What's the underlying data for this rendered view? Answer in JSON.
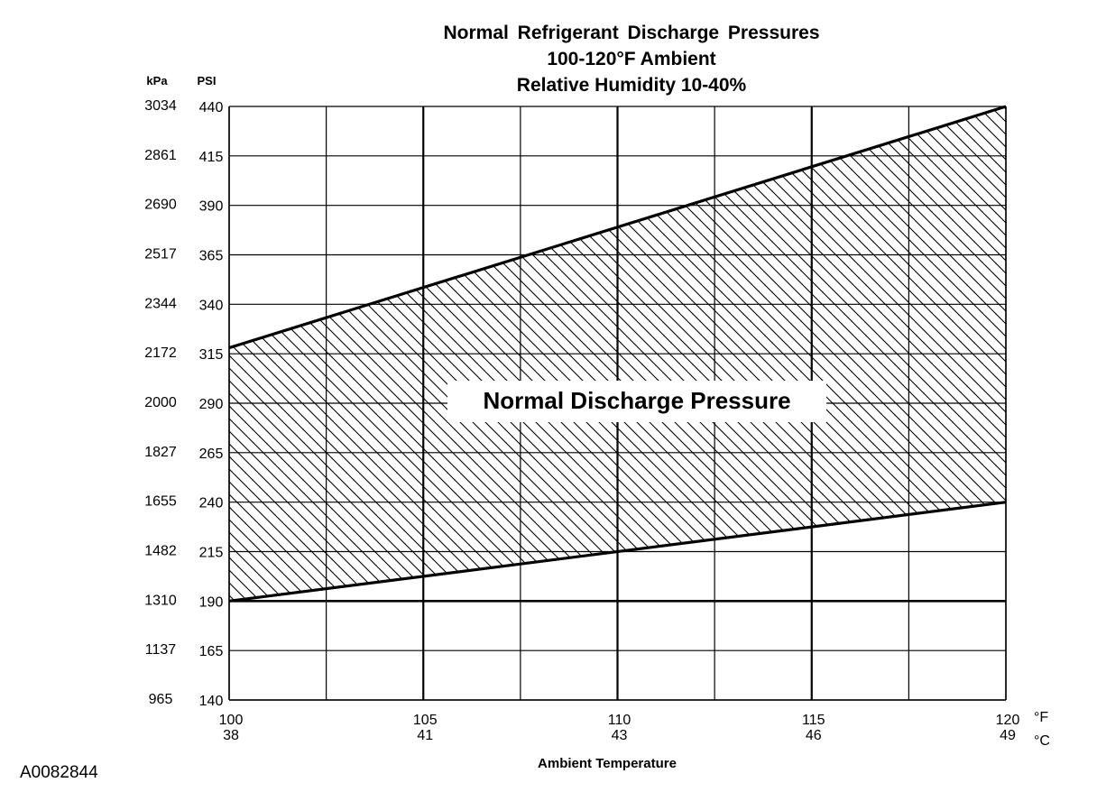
{
  "chart_data": {
    "type": "area",
    "title": "Normal  Refrigerant  Discharge  Pressures",
    "subtitle": [
      "100-120°F Ambient",
      "Relative Humidity 10-40%"
    ],
    "xlabel": "Ambient Temperature",
    "x_unit_primary": "°F",
    "x_unit_secondary": "°C",
    "y_unit_primary": "PSI",
    "y_unit_secondary": "kPa",
    "xlim": [
      100,
      120
    ],
    "ylim": [
      140,
      440
    ],
    "x_ticks_f": [
      "100",
      "105",
      "110",
      "115",
      "120"
    ],
    "x_ticks_c": [
      "38",
      "41",
      "43",
      "46",
      "49"
    ],
    "y_ticks_psi": [
      "140",
      "165",
      "190",
      "215",
      "240",
      "265",
      "290",
      "315",
      "340",
      "365",
      "390",
      "415",
      "440"
    ],
    "y_ticks_kpa": [
      "965",
      "1137",
      "1310",
      "1482",
      "1655",
      "1827",
      "2000",
      "2172",
      "2344",
      "2517",
      "2690",
      "2861",
      "3034"
    ],
    "vertical_gridlines_f": [
      100,
      102.5,
      105,
      107.5,
      110,
      112.5,
      115,
      117.5,
      120
    ],
    "grid": true,
    "series": [
      {
        "x": [
          100,
          120
        ],
        "upper": [
          318,
          440
        ],
        "lower": [
          190,
          240
        ]
      }
    ],
    "band_annotation": "Normal Discharge Pressure"
  },
  "figure_id": "A0082844"
}
